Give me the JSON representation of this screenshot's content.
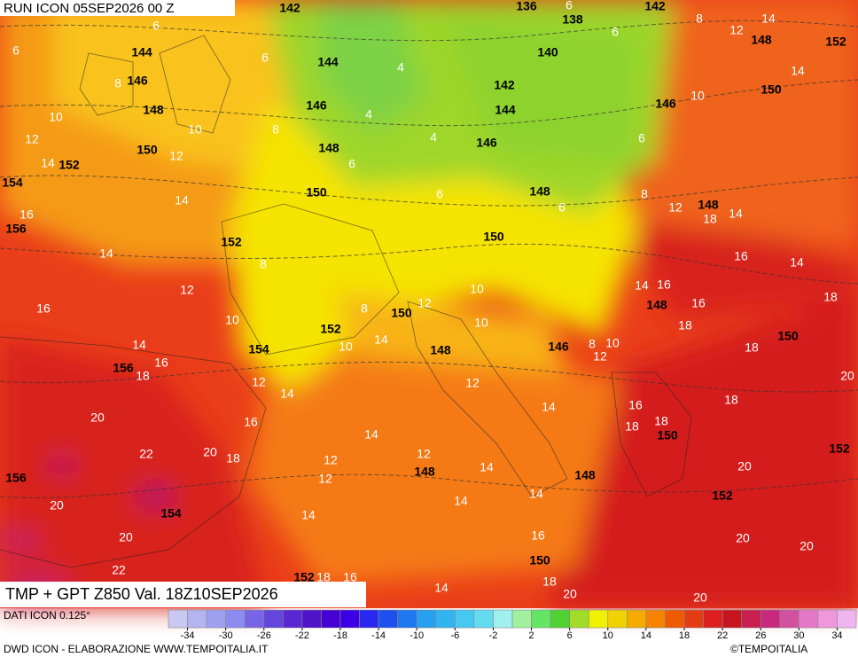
{
  "header": {
    "run": "RUN ICON 05SEP2026 00 Z"
  },
  "map": {
    "geopotential_labels": [
      142,
      136,
      138,
      142,
      144,
      144,
      140,
      152,
      148,
      146,
      142,
      144,
      148,
      146,
      150,
      146,
      146,
      150,
      152,
      148,
      154,
      150,
      148,
      148,
      156,
      152,
      150,
      148,
      150,
      152,
      154,
      146,
      148,
      150,
      156,
      150,
      148,
      148,
      152,
      156,
      152,
      154,
      150,
      152
    ],
    "temperature_labels": [
      6,
      6,
      6,
      4,
      8,
      4,
      10,
      10,
      12,
      8,
      12,
      14,
      6,
      4,
      6,
      6,
      6,
      8,
      14,
      16,
      14,
      12,
      8,
      16,
      10,
      8,
      12,
      10,
      14,
      10,
      10,
      14,
      16,
      18,
      12,
      14,
      16,
      20,
      22,
      20,
      18,
      12,
      14,
      14,
      12,
      12,
      12,
      14,
      16,
      18,
      18,
      14,
      14,
      14,
      16,
      20,
      20,
      22,
      18,
      20,
      20,
      14,
      20,
      20,
      20,
      18,
      20,
      18,
      18,
      16,
      14,
      16,
      18,
      14,
      16,
      18,
      14,
      12,
      14,
      14,
      12,
      8,
      10,
      6,
      6,
      12,
      8,
      10,
      18,
      16
    ]
  },
  "footer": {
    "field": "TMP + GPT Z850 Val. 18Z10SEP2026",
    "source": "DATI ICON 0.125°",
    "credit": "DWD ICON - ELABORAZIONE WWW.TEMPOITALIA.IT",
    "copyright": "©TEMPOITALIA"
  },
  "colorbar": {
    "range": [
      -36,
      36
    ],
    "ticks": [
      -34,
      -30,
      -26,
      -22,
      -18,
      -14,
      -10,
      -6,
      -2,
      2,
      6,
      10,
      14,
      18,
      22,
      26,
      30,
      34
    ],
    "colors": [
      "#c8c8f0",
      "#b4b4f0",
      "#a0a0f0",
      "#8c8cf0",
      "#7864e6",
      "#6446dc",
      "#5a28d2",
      "#5014c8",
      "#4600d2",
      "#3c00e6",
      "#2828f0",
      "#1e50f0",
      "#1e78f0",
      "#28a0f0",
      "#32b4f0",
      "#46c8f0",
      "#64dcf0",
      "#a0f0f0",
      "#a0f0a0",
      "#64e664",
      "#50d232",
      "#a0dc28",
      "#f0f000",
      "#f0d200",
      "#f5aa00",
      "#f58200",
      "#f05a00",
      "#e63c14",
      "#dc1e1e",
      "#c8141e",
      "#c81e50",
      "#c8287e",
      "#d250a0",
      "#e678c8",
      "#f096dc",
      "#f0b4f0"
    ]
  }
}
